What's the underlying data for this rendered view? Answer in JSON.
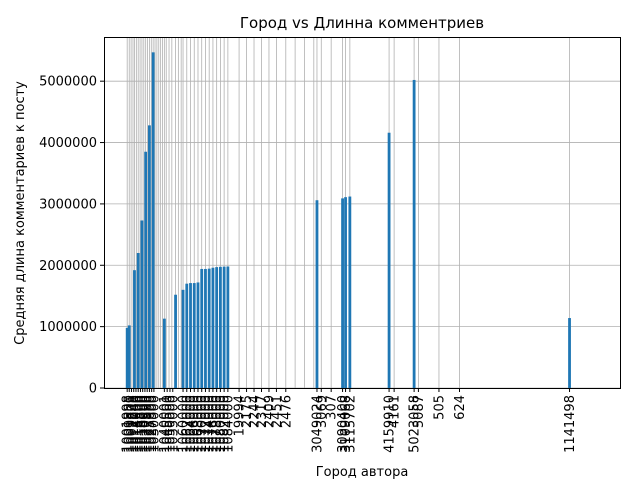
{
  "chart_data": {
    "type": "bar",
    "title": "Город vs Длинна комментриев",
    "xlabel": "Город автора",
    "ylabel": "Средняя длина комментариев к посту",
    "ylim": [
      0,
      5720000
    ],
    "yticks": [
      0,
      1000000,
      2000000,
      3000000,
      4000000,
      5000000
    ],
    "xlim": [
      0,
      2500
    ],
    "grid": true,
    "bar_color": "#1f77b4",
    "grid_color": "#b0b0b0",
    "bars": [
      {
        "x": 1,
        "y": 980000
      },
      {
        "x": 12,
        "y": 1020000
      },
      {
        "x": 40,
        "y": 1920000
      },
      {
        "x": 60,
        "y": 2200000
      },
      {
        "x": 80,
        "y": 2730000
      },
      {
        "x": 100,
        "y": 3850000
      },
      {
        "x": 120,
        "y": 4280000
      },
      {
        "x": 140,
        "y": 5470000
      },
      {
        "x": 200,
        "y": 1130000
      },
      {
        "x": 260,
        "y": 1520000
      },
      {
        "x": 300,
        "y": 1600000
      },
      {
        "x": 320,
        "y": 1700000
      },
      {
        "x": 340,
        "y": 1710000
      },
      {
        "x": 360,
        "y": 1710000
      },
      {
        "x": 380,
        "y": 1720000
      },
      {
        "x": 400,
        "y": 1940000
      },
      {
        "x": 420,
        "y": 1940000
      },
      {
        "x": 440,
        "y": 1945000
      },
      {
        "x": 460,
        "y": 1960000
      },
      {
        "x": 480,
        "y": 1970000
      },
      {
        "x": 500,
        "y": 1975000
      },
      {
        "x": 520,
        "y": 1978000
      },
      {
        "x": 540,
        "y": 1980000
      },
      {
        "x": 1017,
        "y": 3060000
      },
      {
        "x": 1154,
        "y": 3090000
      },
      {
        "x": 1170,
        "y": 3110000
      },
      {
        "x": 1193,
        "y": 3120000
      },
      {
        "x": 1403,
        "y": 4160000
      },
      {
        "x": 1537,
        "y": 5020000
      },
      {
        "x": 2369,
        "y": 1140000
      }
    ],
    "vgrid_x": [
      1,
      12,
      22,
      32,
      40,
      50,
      60,
      70,
      80,
      90,
      100,
      110,
      120,
      130,
      140,
      150,
      160,
      170,
      180,
      190,
      200,
      210,
      225,
      240,
      260,
      275,
      290,
      300,
      320,
      340,
      360,
      380,
      400,
      420,
      440,
      460,
      480,
      500,
      520,
      540,
      600,
      640,
      680,
      720,
      760,
      800,
      850,
      900,
      950,
      1000,
      1017,
      1040,
      1093,
      1154,
      1170,
      1193,
      1403,
      1430,
      1537,
      1560,
      1670,
      1780,
      2369
    ],
    "xtick_labels": [
      {
        "x": 1,
        "text": "1001998"
      },
      {
        "x": 12,
        "text": "1009800"
      },
      {
        "x": 24,
        "text": "1009801"
      },
      {
        "x": 36,
        "text": "1011240"
      },
      {
        "x": 48,
        "text": "1014000"
      },
      {
        "x": 60,
        "text": "1015500"
      },
      {
        "x": 72,
        "text": "1016800"
      },
      {
        "x": 84,
        "text": "1018000"
      },
      {
        "x": 96,
        "text": "1020500"
      },
      {
        "x": 108,
        "text": "1022990"
      },
      {
        "x": 120,
        "text": "1025000"
      },
      {
        "x": 132,
        "text": "1027500"
      },
      {
        "x": 144,
        "text": "1030000"
      },
      {
        "x": 200,
        "text": "1040001"
      },
      {
        "x": 215,
        "text": "1045500"
      },
      {
        "x": 230,
        "text": "1050000"
      },
      {
        "x": 245,
        "text": "1055000"
      },
      {
        "x": 300,
        "text": "1060000"
      },
      {
        "x": 320,
        "text": "1062000"
      },
      {
        "x": 340,
        "text": "1064000"
      },
      {
        "x": 360,
        "text": "1066000"
      },
      {
        "x": 380,
        "text": "1068000"
      },
      {
        "x": 400,
        "text": "1070000"
      },
      {
        "x": 420,
        "text": "1072000"
      },
      {
        "x": 440,
        "text": "1074000"
      },
      {
        "x": 460,
        "text": "1076000"
      },
      {
        "x": 480,
        "text": "1078000"
      },
      {
        "x": 500,
        "text": "1080000"
      },
      {
        "x": 520,
        "text": "1082000"
      },
      {
        "x": 540,
        "text": "1084000"
      },
      {
        "x": 600,
        "text": "19994"
      },
      {
        "x": 640,
        "text": "2175"
      },
      {
        "x": 680,
        "text": "2244"
      },
      {
        "x": 720,
        "text": "2317"
      },
      {
        "x": 760,
        "text": "2409"
      },
      {
        "x": 800,
        "text": "2451"
      },
      {
        "x": 850,
        "text": "2476"
      },
      {
        "x": 1017,
        "text": "3049024"
      },
      {
        "x": 1040,
        "text": "3069"
      },
      {
        "x": 1093,
        "text": "307"
      },
      {
        "x": 1154,
        "text": "3090400"
      },
      {
        "x": 1170,
        "text": "3109068"
      },
      {
        "x": 1193,
        "text": "3115702"
      },
      {
        "x": 1403,
        "text": "4159910"
      },
      {
        "x": 1430,
        "text": "4161"
      },
      {
        "x": 1537,
        "text": "5023058"
      },
      {
        "x": 1560,
        "text": "5087"
      },
      {
        "x": 1670,
        "text": "505"
      },
      {
        "x": 1780,
        "text": "624"
      },
      {
        "x": 2369,
        "text": "1141498"
      }
    ]
  }
}
